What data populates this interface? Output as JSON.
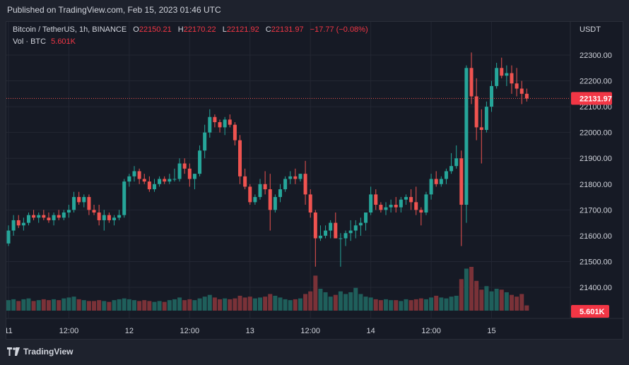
{
  "header": {
    "published": "Published on TradingView.com, Feb 15, 2023 01:46 UTC"
  },
  "legend": {
    "symbol": "Bitcoin / TetherUS, 1h, BINANCE",
    "o_label": "O",
    "o_value": "22150.21",
    "h_label": "H",
    "h_value": "22170.22",
    "l_label": "L",
    "l_value": "22121.92",
    "c_label": "C",
    "c_value": "22131.97",
    "change": "−17.77 (−0.08%)",
    "vol_label": "Vol · BTC",
    "vol_value": "5.601K"
  },
  "footer": {
    "brand": "TradingView"
  },
  "colors": {
    "up": "#26a69a",
    "down": "#ef5350",
    "vol_up": "#1f5f5b",
    "vol_down": "#7a3238",
    "grid": "#232733",
    "text": "#d1d4dc",
    "bg": "#161a25"
  },
  "chart_data": {
    "type": "candlestick",
    "currency_label": "USDT",
    "y_ticks": [
      "22300.00",
      "22200.00",
      "22100.00",
      "22000.00",
      "21900.00",
      "21800.00",
      "21700.00",
      "21600.00",
      "21500.00",
      "21400.00"
    ],
    "ylim": [
      21360,
      22370
    ],
    "last_price": 22131.97,
    "last_price_label": "22131.97",
    "volume_label": "5.601K",
    "x_ticks": [
      {
        "label": "11",
        "bar": 0
      },
      {
        "label": "12:00",
        "bar": 12
      },
      {
        "label": "12",
        "bar": 24
      },
      {
        "label": "12:00",
        "bar": 36
      },
      {
        "label": "13",
        "bar": 48
      },
      {
        "label": "12:00",
        "bar": 60
      },
      {
        "label": "14",
        "bar": 72
      },
      {
        "label": "12:00",
        "bar": 84
      },
      {
        "label": "15",
        "bar": 96
      }
    ],
    "ohlc": [
      [
        21570,
        21640,
        21560,
        21620
      ],
      [
        21620,
        21680,
        21600,
        21660
      ],
      [
        21660,
        21680,
        21630,
        21640
      ],
      [
        21640,
        21670,
        21620,
        21650
      ],
      [
        21650,
        21690,
        21640,
        21680
      ],
      [
        21680,
        21700,
        21660,
        21670
      ],
      [
        21670,
        21690,
        21650,
        21680
      ],
      [
        21680,
        21700,
        21660,
        21670
      ],
      [
        21670,
        21690,
        21650,
        21660
      ],
      [
        21660,
        21690,
        21640,
        21680
      ],
      [
        21680,
        21700,
        21660,
        21670
      ],
      [
        21670,
        21700,
        21660,
        21690
      ],
      [
        21690,
        21720,
        21670,
        21700
      ],
      [
        21700,
        21770,
        21690,
        21750
      ],
      [
        21750,
        21770,
        21720,
        21730
      ],
      [
        21730,
        21760,
        21710,
        21750
      ],
      [
        21750,
        21760,
        21680,
        21700
      ],
      [
        21700,
        21720,
        21680,
        21690
      ],
      [
        21690,
        21720,
        21640,
        21660
      ],
      [
        21660,
        21700,
        21620,
        21680
      ],
      [
        21680,
        21690,
        21650,
        21660
      ],
      [
        21660,
        21680,
        21640,
        21670
      ],
      [
        21670,
        21700,
        21660,
        21680
      ],
      [
        21680,
        21820,
        21670,
        21810
      ],
      [
        21810,
        21840,
        21790,
        21830
      ],
      [
        21830,
        21870,
        21810,
        21850
      ],
      [
        21850,
        21860,
        21800,
        21820
      ],
      [
        21820,
        21840,
        21800,
        21810
      ],
      [
        21810,
        21830,
        21770,
        21780
      ],
      [
        21780,
        21820,
        21770,
        21800
      ],
      [
        21800,
        21830,
        21790,
        21820
      ],
      [
        21820,
        21830,
        21800,
        21810
      ],
      [
        21810,
        21840,
        21800,
        21820
      ],
      [
        21820,
        21860,
        21810,
        21820
      ],
      [
        21820,
        21900,
        21810,
        21880
      ],
      [
        21880,
        21900,
        21840,
        21860
      ],
      [
        21860,
        21880,
        21790,
        21820
      ],
      [
        21820,
        21840,
        21780,
        21840
      ],
      [
        21840,
        21950,
        21830,
        21930
      ],
      [
        21930,
        22030,
        21900,
        22000
      ],
      [
        22000,
        22090,
        21980,
        22060
      ],
      [
        22060,
        22070,
        22020,
        22040
      ],
      [
        22040,
        22050,
        22000,
        22020
      ],
      [
        22020,
        22060,
        21990,
        22050
      ],
      [
        22050,
        22070,
        22020,
        22030
      ],
      [
        22030,
        22040,
        21950,
        21970
      ],
      [
        21970,
        21990,
        21800,
        21830
      ],
      [
        21830,
        21860,
        21780,
        21790
      ],
      [
        21790,
        21800,
        21720,
        21730
      ],
      [
        21730,
        21760,
        21720,
        21750
      ],
      [
        21750,
        21820,
        21740,
        21800
      ],
      [
        21800,
        21850,
        21760,
        21780
      ],
      [
        21780,
        21840,
        21620,
        21700
      ],
      [
        21700,
        21760,
        21690,
        21750
      ],
      [
        21750,
        21800,
        21730,
        21780
      ],
      [
        21780,
        21830,
        21770,
        21820
      ],
      [
        21820,
        21850,
        21800,
        21830
      ],
      [
        21830,
        21860,
        21800,
        21820
      ],
      [
        21820,
        21840,
        21810,
        21840
      ],
      [
        21840,
        21890,
        21720,
        21760
      ],
      [
        21760,
        21780,
        21670,
        21690
      ],
      [
        21690,
        21700,
        21480,
        21590
      ],
      [
        21590,
        21640,
        21580,
        21600
      ],
      [
        21600,
        21640,
        21590,
        21620
      ],
      [
        21620,
        21660,
        21590,
        21650
      ],
      [
        21650,
        21690,
        21590,
        21590
      ],
      [
        21590,
        21610,
        21480,
        21590
      ],
      [
        21590,
        21620,
        21560,
        21610
      ],
      [
        21610,
        21660,
        21580,
        21620
      ],
      [
        21620,
        21660,
        21590,
        21640
      ],
      [
        21640,
        21670,
        21600,
        21650
      ],
      [
        21650,
        21690,
        21620,
        21690
      ],
      [
        21690,
        21790,
        21680,
        21760
      ],
      [
        21760,
        21780,
        21700,
        21720
      ],
      [
        21720,
        21730,
        21690,
        21700
      ],
      [
        21700,
        21730,
        21680,
        21710
      ],
      [
        21710,
        21740,
        21690,
        21720
      ],
      [
        21720,
        21750,
        21690,
        21710
      ],
      [
        21710,
        21750,
        21690,
        21740
      ],
      [
        21740,
        21760,
        21720,
        21750
      ],
      [
        21750,
        21780,
        21700,
        21730
      ],
      [
        21730,
        21790,
        21680,
        21700
      ],
      [
        21700,
        21710,
        21640,
        21690
      ],
      [
        21690,
        21770,
        21680,
        21760
      ],
      [
        21760,
        21840,
        21740,
        21820
      ],
      [
        21820,
        21850,
        21790,
        21800
      ],
      [
        21800,
        21830,
        21790,
        21820
      ],
      [
        21820,
        21860,
        21800,
        21850
      ],
      [
        21850,
        21920,
        21840,
        21870
      ],
      [
        21870,
        21950,
        21860,
        21900
      ],
      [
        21900,
        21930,
        21560,
        21720
      ],
      [
        21720,
        22260,
        21650,
        22250
      ],
      [
        22250,
        22310,
        22110,
        22140
      ],
      [
        22140,
        22210,
        21970,
        22020
      ],
      [
        22020,
        22090,
        21880,
        22010
      ],
      [
        22010,
        22120,
        22000,
        22100
      ],
      [
        22100,
        22200,
        22080,
        22180
      ],
      [
        22180,
        22270,
        22170,
        22250
      ],
      [
        22250,
        22290,
        22210,
        22220
      ],
      [
        22220,
        22260,
        22180,
        22230
      ],
      [
        22230,
        22260,
        22150,
        22190
      ],
      [
        22190,
        22250,
        22140,
        22170
      ],
      [
        22170,
        22200,
        22110,
        22150
      ],
      [
        22150,
        22170,
        22120,
        22132
      ]
    ],
    "volume": [
      1.2,
      1.3,
      1.1,
      1.3,
      1.4,
      1.1,
      1.2,
      1.3,
      1.2,
      1.3,
      1.2,
      1.4,
      1.5,
      1.6,
      1.3,
      1.2,
      1.1,
      1.1,
      1.2,
      1.1,
      1.0,
      1.2,
      1.3,
      1.4,
      1.3,
      1.2,
      1.1,
      1.2,
      1.1,
      1.0,
      1.1,
      1.0,
      1.2,
      1.3,
      1.5,
      1.2,
      1.3,
      1.2,
      1.4,
      1.6,
      1.8,
      1.5,
      1.3,
      1.4,
      1.3,
      1.4,
      1.7,
      1.5,
      1.6,
      1.4,
      1.5,
      1.6,
      1.9,
      1.7,
      1.5,
      1.3,
      1.2,
      1.3,
      1.4,
      1.9,
      2.2,
      4.0,
      2.5,
      2.1,
      1.6,
      1.8,
      2.2,
      1.9,
      2.1,
      2.6,
      1.9,
      1.6,
      1.5,
      1.3,
      1.2,
      1.3,
      1.2,
      1.2,
      1.1,
      1.3,
      1.2,
      1.3,
      1.4,
      1.3,
      1.5,
      1.7,
      1.5,
      1.4,
      1.6,
      1.7,
      3.6,
      4.8,
      5.0,
      3.4,
      2.4,
      2.8,
      2.2,
      2.5,
      2.4,
      2.1,
      1.8,
      1.6,
      1.9,
      0.6
    ]
  }
}
